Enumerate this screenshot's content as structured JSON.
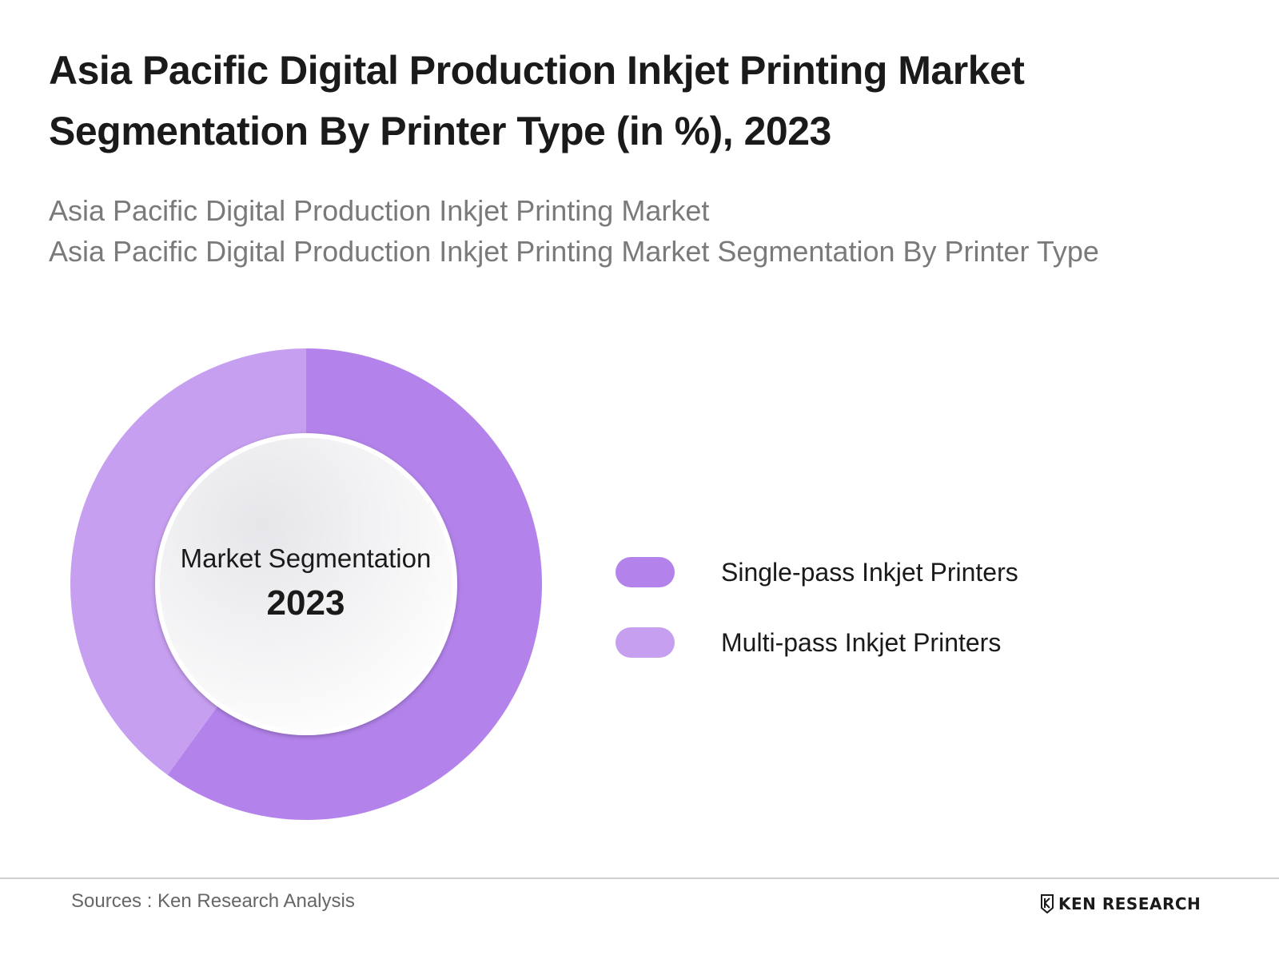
{
  "header": {
    "title_line1": "Asia Pacific Digital Production Inkjet Printing Market",
    "title_line2": "Segmentation By Printer Type (in %), 2023",
    "subtitle_line1": "Asia Pacific Digital Production Inkjet Printing Market",
    "subtitle_line2": "Asia Pacific Digital Production Inkjet Printing Market Segmentation By Printer Type"
  },
  "chart_data": {
    "type": "pie",
    "variant": "donut",
    "center_label": "Market Segmentation",
    "center_value": "2023",
    "series": [
      {
        "name": "Single-pass Inkjet Printers",
        "value": 60,
        "color": "#b383eb"
      },
      {
        "name": "Multi-pass Inkjet Printers",
        "value": 40,
        "color": "#c79ff0"
      }
    ],
    "legend_position": "right"
  },
  "footer": {
    "source": "Sources : Ken Research Analysis",
    "brand": "KEN RESEARCH"
  },
  "colors": {
    "title": "#1a1a1a",
    "subtitle": "#7a7a7a",
    "divider": "#cfcfcf"
  }
}
